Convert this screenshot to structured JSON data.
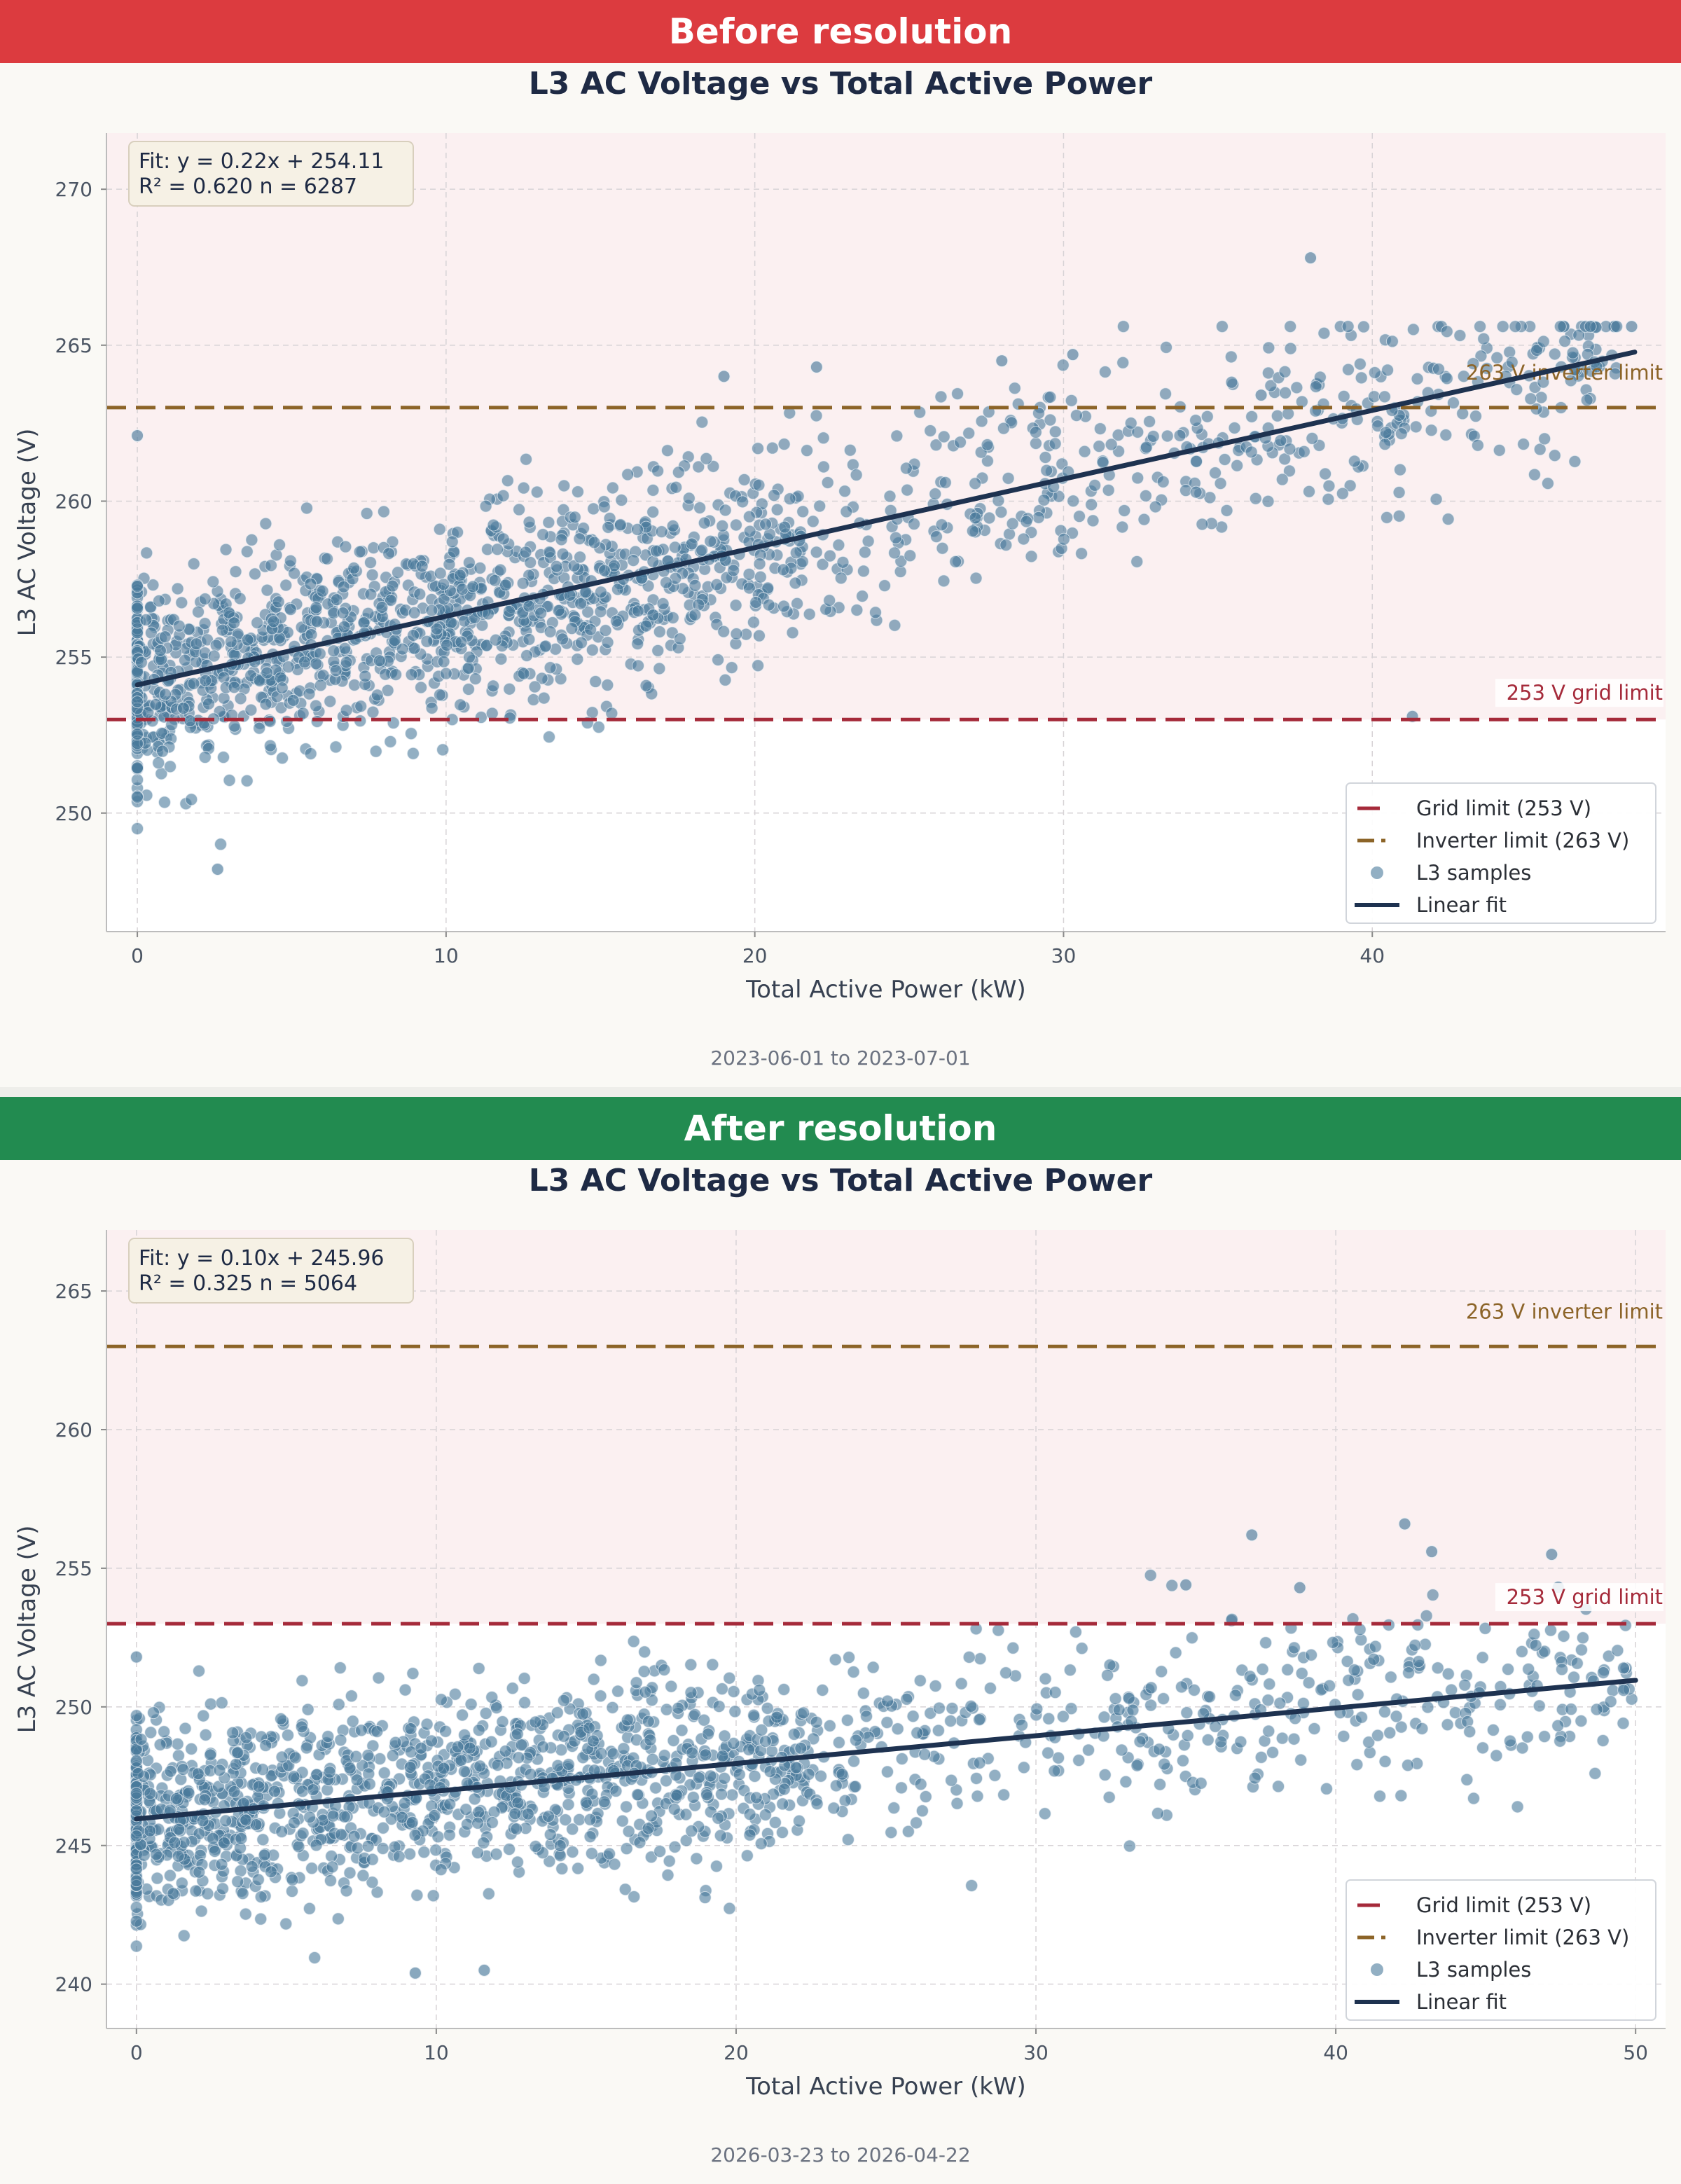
{
  "panels": [
    {
      "banner": "Before resolution",
      "banner_color": "#dc3b3f",
      "date_range": "2023-06-01 to 2023-07-01"
    },
    {
      "banner": "After resolution",
      "banner_color": "#228b50",
      "date_range": "2026-03-23 to 2026-04-22"
    }
  ],
  "colors": {
    "grid_limit": "#a52a3a",
    "inverter_limit": "#8c6428",
    "samples": "#4a7a9b",
    "fit": "#1e3250",
    "shade": "#fbf0f1",
    "title": "#1e2a44"
  },
  "legend": {
    "grid_limit": "Grid limit (253 V)",
    "inverter_limit": "Inverter limit (263 V)",
    "samples": "L3 samples",
    "fit": "Linear fit"
  },
  "chart_data": [
    {
      "type": "scatter",
      "title": "L3 AC Voltage vs Total Active Power",
      "xlabel": "Total Active Power (kW)",
      "ylabel": "L3 AC Voltage (V)",
      "xlim": [
        -1,
        49.5
      ],
      "ylim": [
        246.2,
        271.8
      ],
      "xticks": [
        0,
        10,
        20,
        30,
        40
      ],
      "yticks": [
        250,
        255,
        260,
        265,
        270
      ],
      "grid": true,
      "legend_position": "lower-right",
      "shaded_region_above_volts": 253,
      "grid_limit": {
        "value": 253,
        "label": "253 V grid limit"
      },
      "inverter_limit": {
        "value": 263,
        "label": "263 V inverter limit"
      },
      "fit": {
        "slope": 0.22,
        "intercept": 254.11,
        "x_range": [
          0,
          48.5
        ],
        "r2": 0.62,
        "n": 6287
      },
      "fit_text": [
        "Fit: y = 0.22x + 254.11",
        "R² = 0.620   n = 6287"
      ],
      "samples_model": {
        "n_drawn": 1800,
        "x_max": 48,
        "noise_sd": 1.6,
        "y_min": 248.2,
        "y_max": 265.6
      },
      "outliers": [
        [
          38,
          267.8
        ],
        [
          48.4,
          265.6
        ],
        [
          30.3,
          264.7
        ],
        [
          28,
          264.5
        ],
        [
          22,
          264.3
        ],
        [
          19,
          264
        ],
        [
          36.4,
          263.4
        ],
        [
          41.3,
          253.1
        ],
        [
          0,
          262.1
        ],
        [
          2.6,
          248.2
        ]
      ]
    },
    {
      "type": "scatter",
      "title": "L3 AC Voltage vs Total Active Power",
      "xlabel": "Total Active Power (kW)",
      "ylabel": "L3 AC Voltage (V)",
      "xlim": [
        -1,
        51
      ],
      "ylim": [
        238.4,
        267.2
      ],
      "xticks": [
        0,
        10,
        20,
        30,
        40,
        50
      ],
      "yticks": [
        240,
        245,
        250,
        255,
        260,
        265
      ],
      "grid": true,
      "legend_position": "lower-right",
      "shaded_region_above_volts": 253,
      "grid_limit": {
        "value": 253,
        "label": "253 V grid limit"
      },
      "inverter_limit": {
        "value": 263,
        "label": "263 V inverter limit"
      },
      "fit": {
        "slope": 0.1,
        "intercept": 245.96,
        "x_range": [
          0,
          50
        ],
        "r2": 0.325,
        "n": 5064
      },
      "fit_text": [
        "Fit: y = 0.10x + 245.96",
        "R² = 0.325   n = 5064"
      ],
      "samples_model": {
        "n_drawn": 1700,
        "x_max": 50,
        "noise_sd": 1.7,
        "y_min": 240.5,
        "y_max": 256.6
      },
      "outliers": [
        [
          42.3,
          256.6
        ],
        [
          37.2,
          256.2
        ],
        [
          43.2,
          255.6
        ],
        [
          47.2,
          255.5
        ],
        [
          35,
          254.4
        ],
        [
          38.8,
          254.3
        ],
        [
          0,
          251.8
        ],
        [
          11.6,
          240.5
        ],
        [
          9.3,
          240.4
        ],
        [
          49.6,
          251.4
        ]
      ]
    }
  ]
}
